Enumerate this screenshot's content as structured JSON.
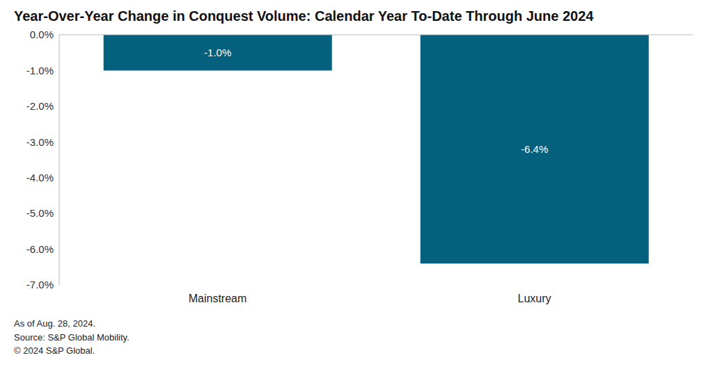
{
  "chart_data": {
    "type": "bar",
    "title": "Year-Over-Year Change in Conquest Volume: Calendar Year To-Date Through June 2024",
    "categories": [
      "Mainstream",
      "Luxury"
    ],
    "values": [
      -1.0,
      -6.4
    ],
    "value_labels": [
      "-1.0%",
      "-6.4%"
    ],
    "data_labels": true,
    "color": "#04607c",
    "ylim": [
      -7,
      0
    ],
    "yticks": [
      {
        "value": -7,
        "label": "-7.0%"
      },
      {
        "value": -6,
        "label": "-6.0%"
      },
      {
        "value": -5,
        "label": "-5.0%"
      },
      {
        "value": -4,
        "label": "-4.0%"
      },
      {
        "value": -3,
        "label": "-3.0%"
      },
      {
        "value": -2,
        "label": "-2.0%"
      },
      {
        "value": -1,
        "label": "-1.0%"
      },
      {
        "value": 0,
        "label": "0.0%"
      }
    ],
    "grid": false,
    "annotations": [
      "As of Aug. 28, 2024.",
      "Source: S&P Global Mobility.",
      "© 2024 S&P Global."
    ]
  }
}
